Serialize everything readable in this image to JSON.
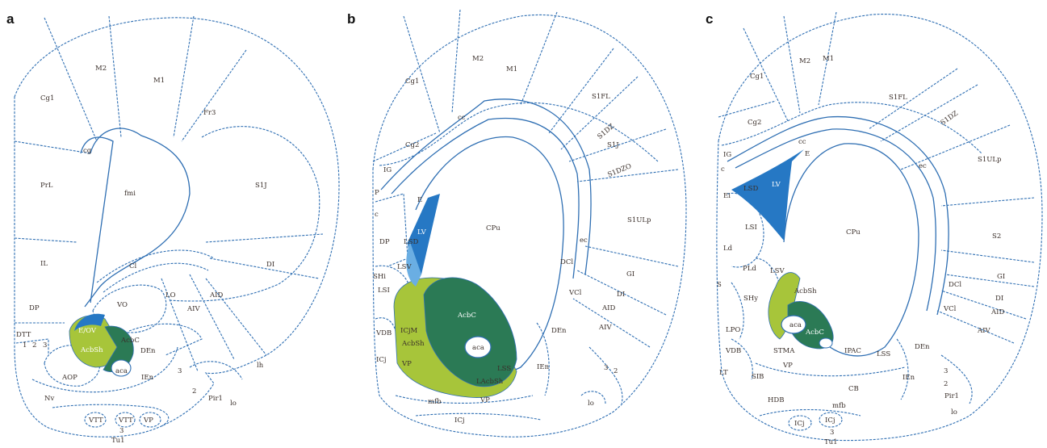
{
  "panels": [
    {
      "letter": "a",
      "regions": [
        "M2",
        "M1",
        "Cg1",
        "Fr3",
        "cg",
        "PrL",
        "fmi",
        "S1J",
        "Cl",
        "IL",
        "DI",
        "DP",
        "VO",
        "LO",
        "AID",
        "AIV",
        "E/OV",
        "AcbC",
        "AcbSh",
        "DEn",
        "DTT",
        "1",
        "2",
        "3",
        "aca",
        "AOP",
        "IEn",
        "3",
        "2",
        "Pir1",
        "lo",
        "Nv",
        "VTT",
        "VTT",
        "VP",
        "3",
        "Tu1",
        "lh"
      ]
    },
    {
      "letter": "b",
      "regions": [
        "M2",
        "M1",
        "Cg1",
        "S1FL",
        "cc",
        "S1DZ",
        "Cg2",
        "S1J",
        "S1DZO",
        "IG",
        "P",
        "E",
        "c",
        "LV",
        "CPu",
        "S1ULp",
        "DP",
        "LSD",
        "ec",
        "DCl",
        "GI",
        "LSV",
        "SHi",
        "VCl",
        "DI",
        "LSI",
        "AcbC",
        "VDB",
        "ICjM",
        "AcbSh",
        "DEn",
        "AID",
        "aca",
        "AIV",
        "ICj",
        "VP",
        "LSS",
        "IEn",
        "3",
        "2",
        "LAcbSh",
        "mfb",
        "VP",
        "lo",
        "ICj"
      ]
    },
    {
      "letter": "c",
      "regions": [
        "M2",
        "M1",
        "Cg1",
        "S1FL",
        "S1DZ",
        "Cg2",
        "cc",
        "IG",
        "E",
        "S1ULp",
        "c",
        "ec",
        "LSD",
        "LV",
        "Ei",
        "LSI",
        "CPu",
        "S2",
        "Ld",
        "PLd",
        "LSV",
        "DCl",
        "GI",
        "AcbSh",
        "DI",
        "S",
        "SHy",
        "VCl",
        "AID",
        "aca",
        "AcbC",
        "AIV",
        "LPO",
        "VDB",
        "STMA",
        "IPAC",
        "LSS",
        "DEn",
        "LT",
        "SIB",
        "VP",
        "IEn",
        "3",
        "2",
        "HDB",
        "CB",
        "mfb",
        "Pir1",
        "lo",
        "ICj",
        "ICj",
        "3",
        "Tu1"
      ]
    }
  ],
  "colors": {
    "outline": "#2f6fb3",
    "ventricle": "#2678c4",
    "ventricle_light": "#6aaee3",
    "shell": "#a7c53a",
    "core": "#2b7a55",
    "label": "#3a2f2a"
  }
}
